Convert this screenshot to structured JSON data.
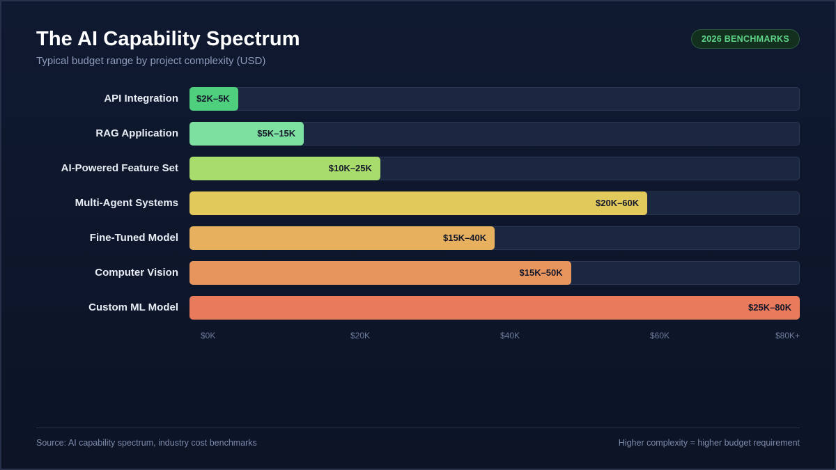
{
  "header": {
    "title": "The AI Capability Spectrum",
    "subtitle": "Typical budget range by project complexity (USD)",
    "badge": "2026 BENCHMARKS"
  },
  "footer": {
    "source": "Source: AI capability spectrum, industry cost benchmarks",
    "note": "Higher complexity = higher budget requirement"
  },
  "colors": {
    "background": "#0e1628",
    "track": "#1b2640",
    "badge_text": "#5fd489"
  },
  "chart_data": {
    "type": "bar",
    "orientation": "horizontal",
    "xlim": [
      0,
      80
    ],
    "x_unit": "$K",
    "x_ticks": [
      {
        "value": 0,
        "label": "$0K"
      },
      {
        "value": 20,
        "label": "$20K"
      },
      {
        "value": 40,
        "label": "$40K"
      },
      {
        "value": 60,
        "label": "$60K"
      },
      {
        "value": 80,
        "label": "$80K+"
      }
    ],
    "grid": false,
    "categories": [
      "API Integration",
      "RAG Application",
      "AI-Powered Feature Set",
      "Multi-Agent Systems",
      "Fine-Tuned Model",
      "Computer Vision",
      "Custom ML Model"
    ],
    "ranges": [
      {
        "min": 2,
        "max": 5,
        "label": "$2K–5K",
        "color": "#4ecf7e"
      },
      {
        "min": 5,
        "max": 15,
        "label": "$5K–15K",
        "color": "#7ee0a0"
      },
      {
        "min": 10,
        "max": 25,
        "label": "$10K–25K",
        "color": "#a8dc6b"
      },
      {
        "min": 20,
        "max": 60,
        "label": "$20K–60K",
        "color": "#e2c95c"
      },
      {
        "min": 15,
        "max": 40,
        "label": "$15K–40K",
        "color": "#e6b05e"
      },
      {
        "min": 15,
        "max": 50,
        "label": "$15K–50K",
        "color": "#e8955d"
      },
      {
        "min": 25,
        "max": 80,
        "label": "$25K–80K",
        "color": "#ea7a5c"
      }
    ]
  }
}
